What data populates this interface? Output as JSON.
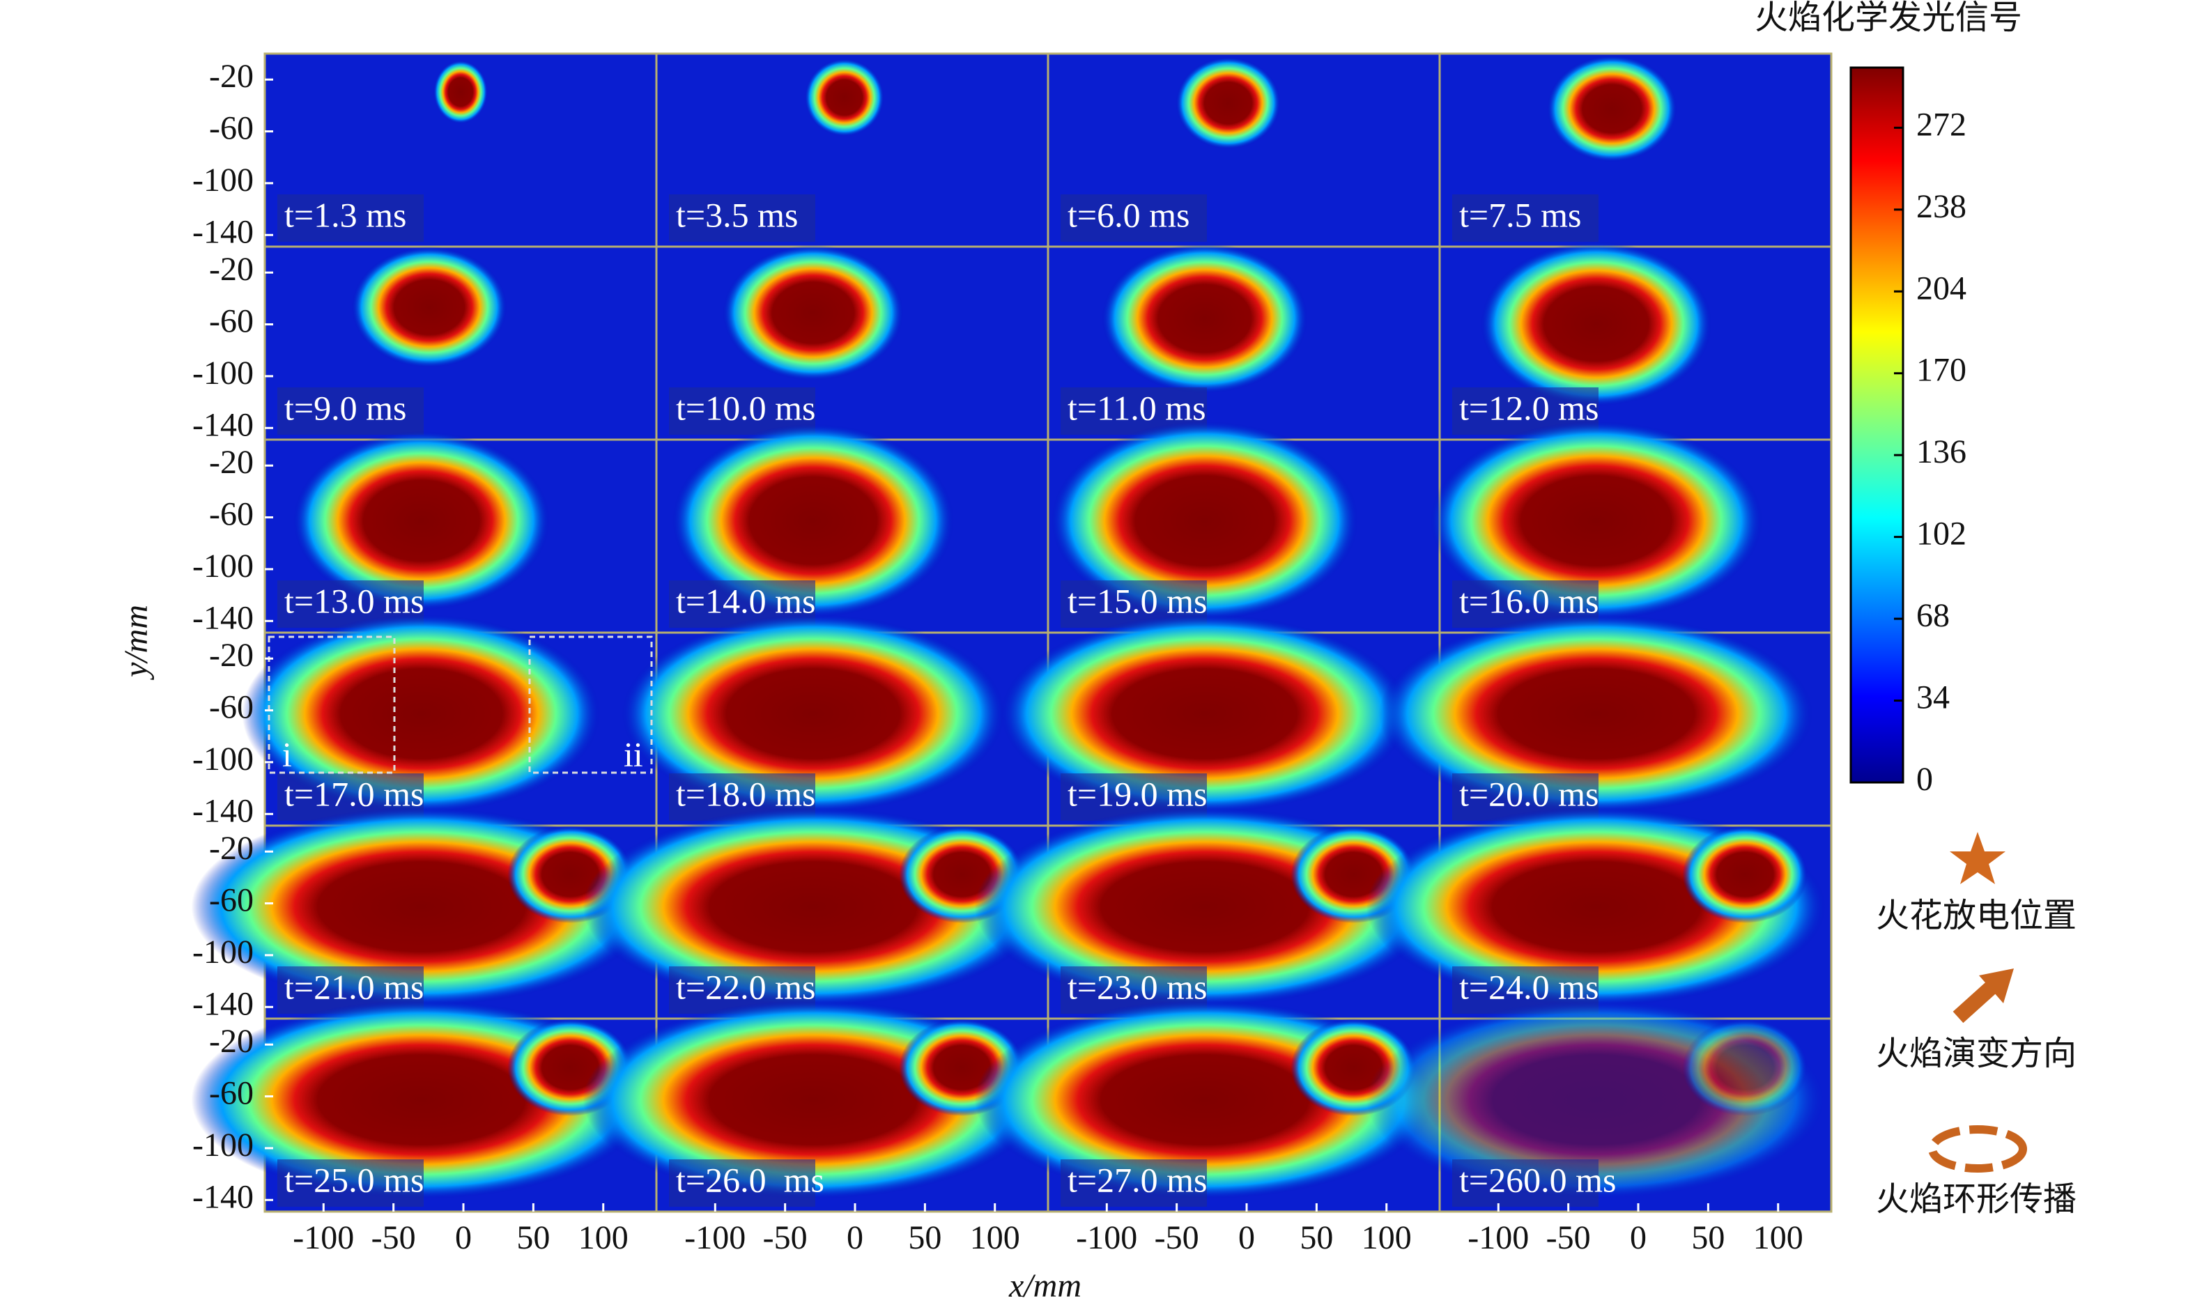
{
  "chart_data": {
    "type": "image-grid",
    "x_label": "x/mm",
    "y_label": "y/mm",
    "xlim": [
      -142,
      138
    ],
    "xticks": [
      -100,
      -50,
      0,
      50,
      100
    ],
    "ylim": [
      -149,
      0
    ],
    "yticks": [
      -20,
      -60,
      -100,
      -140
    ],
    "columns": 4,
    "panels": [
      "t=1.3 ms",
      "t=3.5 ms",
      "t=6.0 ms",
      "t=7.5 ms",
      "t=9.0 ms",
      "t=10.0 ms",
      "t=11.0 ms",
      "t=12.0 ms",
      "t=13.0 ms",
      "t=14.0 ms",
      "t=15.0 ms",
      "t=16.0 ms",
      "t=17.0 ms",
      "t=18.0 ms",
      "t=19.0 ms",
      "t=20.0 ms",
      "t=21.0 ms",
      "t=22.0 ms",
      "t=23.0 ms",
      "t=24.0 ms",
      "t=25.0 ms",
      "t=26.0  ms",
      "t=27.0 ms",
      "t=260.0 ms"
    ],
    "inset_labels": [
      "i",
      "ii"
    ],
    "colorbar": {
      "title": "火焰化学发光信号",
      "lim": [
        0,
        297
      ],
      "ticks": [
        0,
        34,
        68,
        102,
        136,
        170,
        204,
        238,
        272
      ]
    },
    "legend": [
      "火花放电位置",
      "火焰演变方向",
      "火焰环形传播"
    ]
  }
}
